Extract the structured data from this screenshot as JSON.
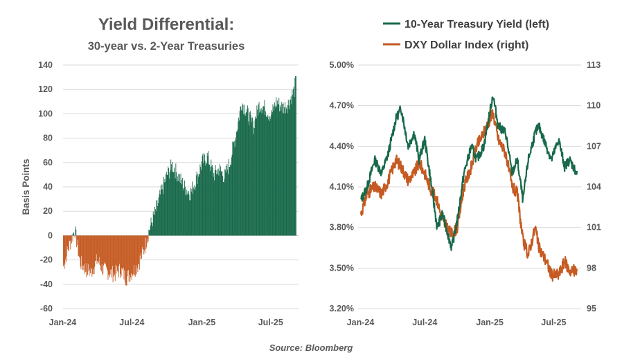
{
  "source": "Source: Bloomberg",
  "chart_data": [
    {
      "type": "bar",
      "title": "Yield Differential:",
      "subtitle": "30-year vs. 2-Year Treasuries",
      "ylabel": "Basis Points",
      "ylim": [
        -60,
        140
      ],
      "yticks": [
        "140",
        "120",
        "100",
        "80",
        "60",
        "40",
        "20",
        "0",
        "-20",
        "-40",
        "-60"
      ],
      "x_tick_labels": [
        "Jan-24",
        "Jul-24",
        "Jan-25",
        "Jul-25"
      ],
      "x_range": [
        "2024-01-02",
        "2025-09-05"
      ],
      "colors": {
        "positive": "#17694a",
        "negative": "#c55a22"
      },
      "series_description": "Weekly 30y minus 2y Treasury spread in basis points",
      "x": [
        "2024-01-02",
        "2024-01-16",
        "2024-02-01",
        "2024-02-15",
        "2024-03-01",
        "2024-03-15",
        "2024-04-01",
        "2024-04-15",
        "2024-05-01",
        "2024-05-15",
        "2024-06-01",
        "2024-06-15",
        "2024-07-01",
        "2024-07-15",
        "2024-08-01",
        "2024-08-15",
        "2024-09-01",
        "2024-09-15",
        "2024-10-01",
        "2024-10-15",
        "2024-11-01",
        "2024-11-15",
        "2024-12-01",
        "2024-12-15",
        "2025-01-01",
        "2025-01-15",
        "2025-02-01",
        "2025-02-15",
        "2025-03-01",
        "2025-03-15",
        "2025-04-01",
        "2025-04-15",
        "2025-05-01",
        "2025-05-15",
        "2025-06-01",
        "2025-06-15",
        "2025-07-01",
        "2025-07-15",
        "2025-08-01",
        "2025-08-15",
        "2025-09-01",
        "2025-09-05"
      ],
      "values": [
        -25,
        -10,
        5,
        -22,
        -28,
        -30,
        -20,
        -28,
        -30,
        -32,
        -28,
        -35,
        -30,
        -25,
        -12,
        5,
        20,
        35,
        50,
        58,
        48,
        40,
        35,
        45,
        60,
        65,
        50,
        55,
        48,
        60,
        85,
        110,
        100,
        90,
        108,
        105,
        98,
        110,
        105,
        108,
        120,
        131
      ]
    },
    {
      "type": "line",
      "legend": [
        "10-Year Treasury Yield (left)",
        "DXY Dollar Index (right)"
      ],
      "left_axis": {
        "ylim": [
          3.2,
          5.0
        ],
        "ticks": [
          "5.00%",
          "4.70%",
          "4.40%",
          "4.10%",
          "3.80%",
          "3.50%",
          "3.20%"
        ]
      },
      "right_axis": {
        "ylim": [
          95,
          113
        ],
        "ticks": [
          "113",
          "110",
          "107",
          "104",
          "101",
          "98",
          "95"
        ]
      },
      "x_tick_labels": [
        "Jan-24",
        "Jul-24",
        "Jan-25",
        "Jul-25"
      ],
      "x_range": [
        "2024-01-02",
        "2025-09-05"
      ],
      "series": [
        {
          "name": "10-Year Treasury Yield (left)",
          "axis": "left",
          "color": "#17694a",
          "x": [
            "2024-01-02",
            "2024-01-20",
            "2024-02-10",
            "2024-03-01",
            "2024-03-20",
            "2024-04-10",
            "2024-04-25",
            "2024-05-15",
            "2024-06-01",
            "2024-06-15",
            "2024-07-01",
            "2024-07-15",
            "2024-08-05",
            "2024-08-20",
            "2024-09-15",
            "2024-10-01",
            "2024-10-20",
            "2024-11-10",
            "2024-11-25",
            "2024-12-15",
            "2025-01-10",
            "2025-01-25",
            "2025-02-15",
            "2025-03-05",
            "2025-03-20",
            "2025-04-05",
            "2025-04-20",
            "2025-05-10",
            "2025-05-20",
            "2025-06-10",
            "2025-06-25",
            "2025-07-15",
            "2025-08-01",
            "2025-08-15",
            "2025-09-05"
          ],
          "values": [
            4.0,
            4.1,
            4.3,
            4.2,
            4.35,
            4.6,
            4.68,
            4.4,
            4.5,
            4.3,
            4.45,
            4.2,
            3.8,
            3.9,
            3.65,
            3.85,
            4.2,
            4.4,
            4.3,
            4.4,
            4.78,
            4.55,
            4.5,
            4.2,
            4.3,
            4.0,
            4.3,
            4.5,
            4.55,
            4.4,
            4.3,
            4.45,
            4.25,
            4.3,
            4.2
          ]
        },
        {
          "name": "DXY Dollar Index (right)",
          "axis": "right",
          "color": "#c55a22",
          "x": [
            "2024-01-02",
            "2024-01-20",
            "2024-02-10",
            "2024-03-01",
            "2024-03-20",
            "2024-04-10",
            "2024-04-25",
            "2024-05-15",
            "2024-06-01",
            "2024-06-15",
            "2024-07-01",
            "2024-07-15",
            "2024-08-05",
            "2024-08-20",
            "2024-09-15",
            "2024-10-01",
            "2024-10-20",
            "2024-11-10",
            "2024-11-25",
            "2024-12-15",
            "2025-01-10",
            "2025-01-25",
            "2025-02-15",
            "2025-03-05",
            "2025-03-20",
            "2025-04-05",
            "2025-04-20",
            "2025-05-10",
            "2025-05-20",
            "2025-06-10",
            "2025-06-25",
            "2025-07-15",
            "2025-08-01",
            "2025-08-15",
            "2025-09-05"
          ],
          "values": [
            102.0,
            103.5,
            104.0,
            103.5,
            104.5,
            106.0,
            105.5,
            104.5,
            105.0,
            105.8,
            105.0,
            104.0,
            103.0,
            101.5,
            100.5,
            101.0,
            104.0,
            105.5,
            107.0,
            108.0,
            109.5,
            107.5,
            106.5,
            104.0,
            103.5,
            100.0,
            99.0,
            101.0,
            99.5,
            98.5,
            97.5,
            97.5,
            98.5,
            97.8,
            97.8
          ]
        }
      ]
    }
  ]
}
